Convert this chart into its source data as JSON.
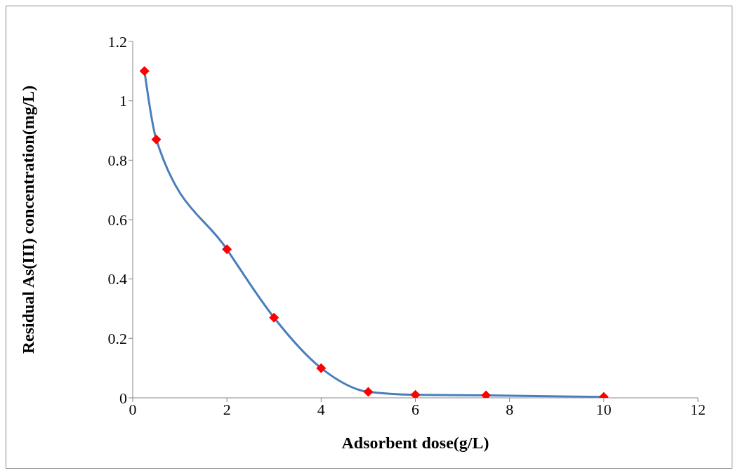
{
  "chart_data": {
    "type": "line",
    "xlabel": "Adsorbent dose(g/L)",
    "ylabel": "Residual As(III) concentration(mg/L)",
    "x": [
      0.25,
      0.5,
      2,
      3,
      4,
      5,
      6,
      7.5,
      10
    ],
    "series": [
      {
        "color": "#4a7ebb",
        "marker": "none",
        "values": [
          1.1,
          0.87,
          0.5,
          0.27,
          0.1,
          0.02,
          0.01,
          0.008,
          0.003
        ]
      },
      {
        "type": "scatter",
        "color": "#ff0000",
        "marker": "diamond",
        "values": [
          1.1,
          0.87,
          0.5,
          0.27,
          0.1,
          0.02,
          0.01,
          0.008,
          0.003
        ]
      }
    ],
    "xlim": [
      0,
      12
    ],
    "xticks": [
      0,
      2,
      4,
      6,
      8,
      10,
      12
    ],
    "ylim": [
      0,
      1.2
    ],
    "yticks": [
      0,
      0.2,
      0.4,
      0.6,
      0.8,
      1,
      1.2
    ],
    "grid": false,
    "legend": false
  }
}
